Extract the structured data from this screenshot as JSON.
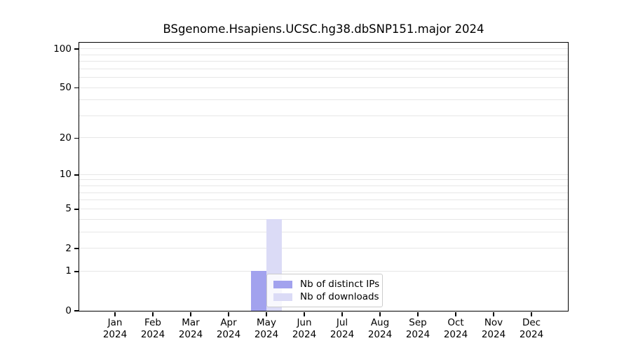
{
  "figure": {
    "background": "#ffffff",
    "axis_color": "#000000",
    "grid_color": "#e7e7e7"
  },
  "chart_data": {
    "type": "bar",
    "title": "BSgenome.Hsapiens.UCSC.hg38.dbSNP151.major 2024",
    "categories": [
      "Jan",
      "Feb",
      "Mar",
      "Apr",
      "May",
      "Jun",
      "Jul",
      "Aug",
      "Sep",
      "Oct",
      "Nov",
      "Dec"
    ],
    "category_sublabel": "2024",
    "series": [
      {
        "name": "Nb of distinct IPs",
        "color": "#a2a2ee",
        "values": [
          0,
          0,
          0,
          0,
          1,
          0,
          0,
          0,
          0,
          0,
          0,
          0
        ]
      },
      {
        "name": "Nb of downloads",
        "color": "#dbdbf6",
        "values": [
          0,
          0,
          0,
          0,
          4,
          0,
          0,
          0,
          0,
          0,
          0,
          0
        ]
      }
    ],
    "xlabel": "",
    "ylabel": "",
    "yscale": "log1p",
    "ylim": [
      0,
      112
    ],
    "yticks": [
      0,
      1,
      2,
      5,
      10,
      20,
      50,
      100
    ],
    "grid_values": [
      1,
      2,
      3,
      4,
      5,
      6,
      7,
      8,
      9,
      10,
      20,
      30,
      40,
      50,
      60,
      70,
      80,
      90,
      100
    ],
    "grid": "horizontal, log-spaced minor lines",
    "legend": {
      "position": "inside, lower middle",
      "labels": [
        "Nb of distinct IPs",
        "Nb of downloads"
      ]
    }
  }
}
